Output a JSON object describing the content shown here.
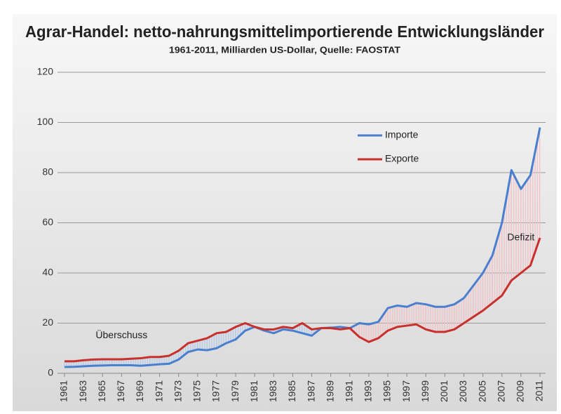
{
  "chart_data": {
    "type": "line",
    "title": "Agrar-Handel: netto-nahrungsmittelimportierende Entwicklungsländer",
    "subtitle": "1961-2011, Milliarden US-Dollar, Quelle: FAOSTAT",
    "x": [
      1961,
      1962,
      1963,
      1964,
      1965,
      1966,
      1967,
      1968,
      1969,
      1970,
      1971,
      1972,
      1973,
      1974,
      1975,
      1976,
      1977,
      1978,
      1979,
      1980,
      1981,
      1982,
      1983,
      1984,
      1985,
      1986,
      1987,
      1988,
      1989,
      1990,
      1991,
      1992,
      1993,
      1994,
      1995,
      1996,
      1997,
      1998,
      1999,
      2000,
      2001,
      2002,
      2003,
      2004,
      2005,
      2006,
      2007,
      2008,
      2009,
      2010,
      2011
    ],
    "series": [
      {
        "name": "Importe",
        "color": "#4a7fcf",
        "values": [
          2.5,
          2.6,
          2.8,
          3.0,
          3.1,
          3.2,
          3.2,
          3.2,
          3.0,
          3.3,
          3.6,
          3.8,
          5.5,
          8.5,
          9.5,
          9.2,
          10,
          12,
          13.5,
          17,
          18.5,
          17,
          16,
          17.5,
          17,
          16,
          15,
          18,
          18.2,
          18.5,
          18,
          20,
          19.5,
          20.5,
          26,
          27,
          26.5,
          28,
          27.5,
          26.5,
          26.5,
          27.5,
          30,
          35,
          40,
          47,
          60,
          81,
          73.5,
          79,
          98
        ]
      },
      {
        "name": "Exporte",
        "color": "#c8302c",
        "values": [
          4.8,
          4.8,
          5.2,
          5.5,
          5.6,
          5.6,
          5.6,
          5.8,
          6,
          6.5,
          6.5,
          7,
          9,
          12,
          13,
          14,
          16,
          16.5,
          18.5,
          20,
          18.5,
          17.5,
          17.5,
          18.5,
          18,
          20,
          17.5,
          18,
          18,
          17.5,
          18,
          14.5,
          12.5,
          14,
          17,
          18.5,
          19,
          19.5,
          17.5,
          16.5,
          16.5,
          17.5,
          20,
          22.5,
          25,
          28,
          31,
          37,
          40,
          43,
          54
        ]
      }
    ],
    "xlim": [
      1961,
      2011
    ],
    "xticks": [
      1961,
      1963,
      1965,
      1967,
      1969,
      1971,
      1973,
      1975,
      1977,
      1979,
      1981,
      1983,
      1985,
      1987,
      1989,
      1991,
      1993,
      1995,
      1997,
      1999,
      2001,
      2003,
      2005,
      2007,
      2009,
      2011
    ],
    "ylim": [
      0,
      120
    ],
    "yticks": [
      0,
      20,
      40,
      60,
      80,
      100,
      120
    ],
    "grid": true,
    "annotations": [
      {
        "text": "Überschuss",
        "x": 1967,
        "y": 15
      },
      {
        "text": "Defizit",
        "x": 2009,
        "y": 54
      }
    ],
    "hatch_colors": {
      "surplus": "#b8cdea",
      "deficit": "#f0c4c8"
    }
  }
}
